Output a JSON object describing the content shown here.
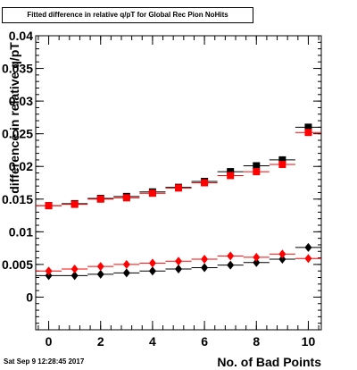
{
  "title": "Fitted difference in relative q/pT for Global Rec Pion NoHits",
  "footer": "Sat Sep  9 12:28:45 2017",
  "chart_data": {
    "type": "scatter",
    "title": "Fitted difference in relative q/pT for Global Rec Pion NoHits",
    "xlabel": "No. of Bad Points",
    "ylabel": "difference in relative q/pT",
    "xlim": [
      -0.5,
      10.5
    ],
    "ylim": [
      -0.005,
      0.04
    ],
    "x_ticks": [
      0,
      2,
      4,
      6,
      8,
      10
    ],
    "y_ticks": [
      0,
      0.005,
      0.01,
      0.015,
      0.02,
      0.025,
      0.03,
      0.035,
      0.04
    ],
    "y_tick_labels": [
      "0",
      "0.005",
      "0.01",
      "0.015",
      "0.02",
      "0.025",
      "0.03",
      "0.035",
      "0.04"
    ],
    "grid": false,
    "series": [
      {
        "color": "#000000",
        "marker": "square",
        "x": [
          0,
          1,
          2,
          3,
          4,
          5,
          6,
          7,
          8,
          9,
          10
        ],
        "y": [
          0.014,
          0.0143,
          0.0151,
          0.0154,
          0.0161,
          0.0168,
          0.0177,
          0.0192,
          0.0201,
          0.021,
          0.026
        ]
      },
      {
        "color": "#ff0000",
        "marker": "square",
        "x": [
          0,
          1,
          2,
          3,
          4,
          5,
          6,
          7,
          8,
          9,
          10
        ],
        "y": [
          0.014,
          0.0142,
          0.015,
          0.0152,
          0.0159,
          0.0167,
          0.0175,
          0.0186,
          0.0192,
          0.0203,
          0.0252
        ]
      },
      {
        "color": "#000000",
        "marker": "diamond",
        "x": [
          0,
          1,
          2,
          3,
          4,
          5,
          6,
          7,
          8,
          9,
          10
        ],
        "y": [
          0.0033,
          0.0033,
          0.0035,
          0.0037,
          0.004,
          0.0043,
          0.0045,
          0.0049,
          0.0053,
          0.0058,
          0.0076
        ]
      },
      {
        "color": "#ff0000",
        "marker": "diamond",
        "x": [
          0,
          1,
          2,
          3,
          4,
          5,
          6,
          7,
          8,
          9,
          10
        ],
        "y": [
          0.004,
          0.0043,
          0.0047,
          0.005,
          0.0052,
          0.0055,
          0.0058,
          0.0063,
          0.0061,
          0.0066,
          0.0059
        ]
      }
    ]
  }
}
